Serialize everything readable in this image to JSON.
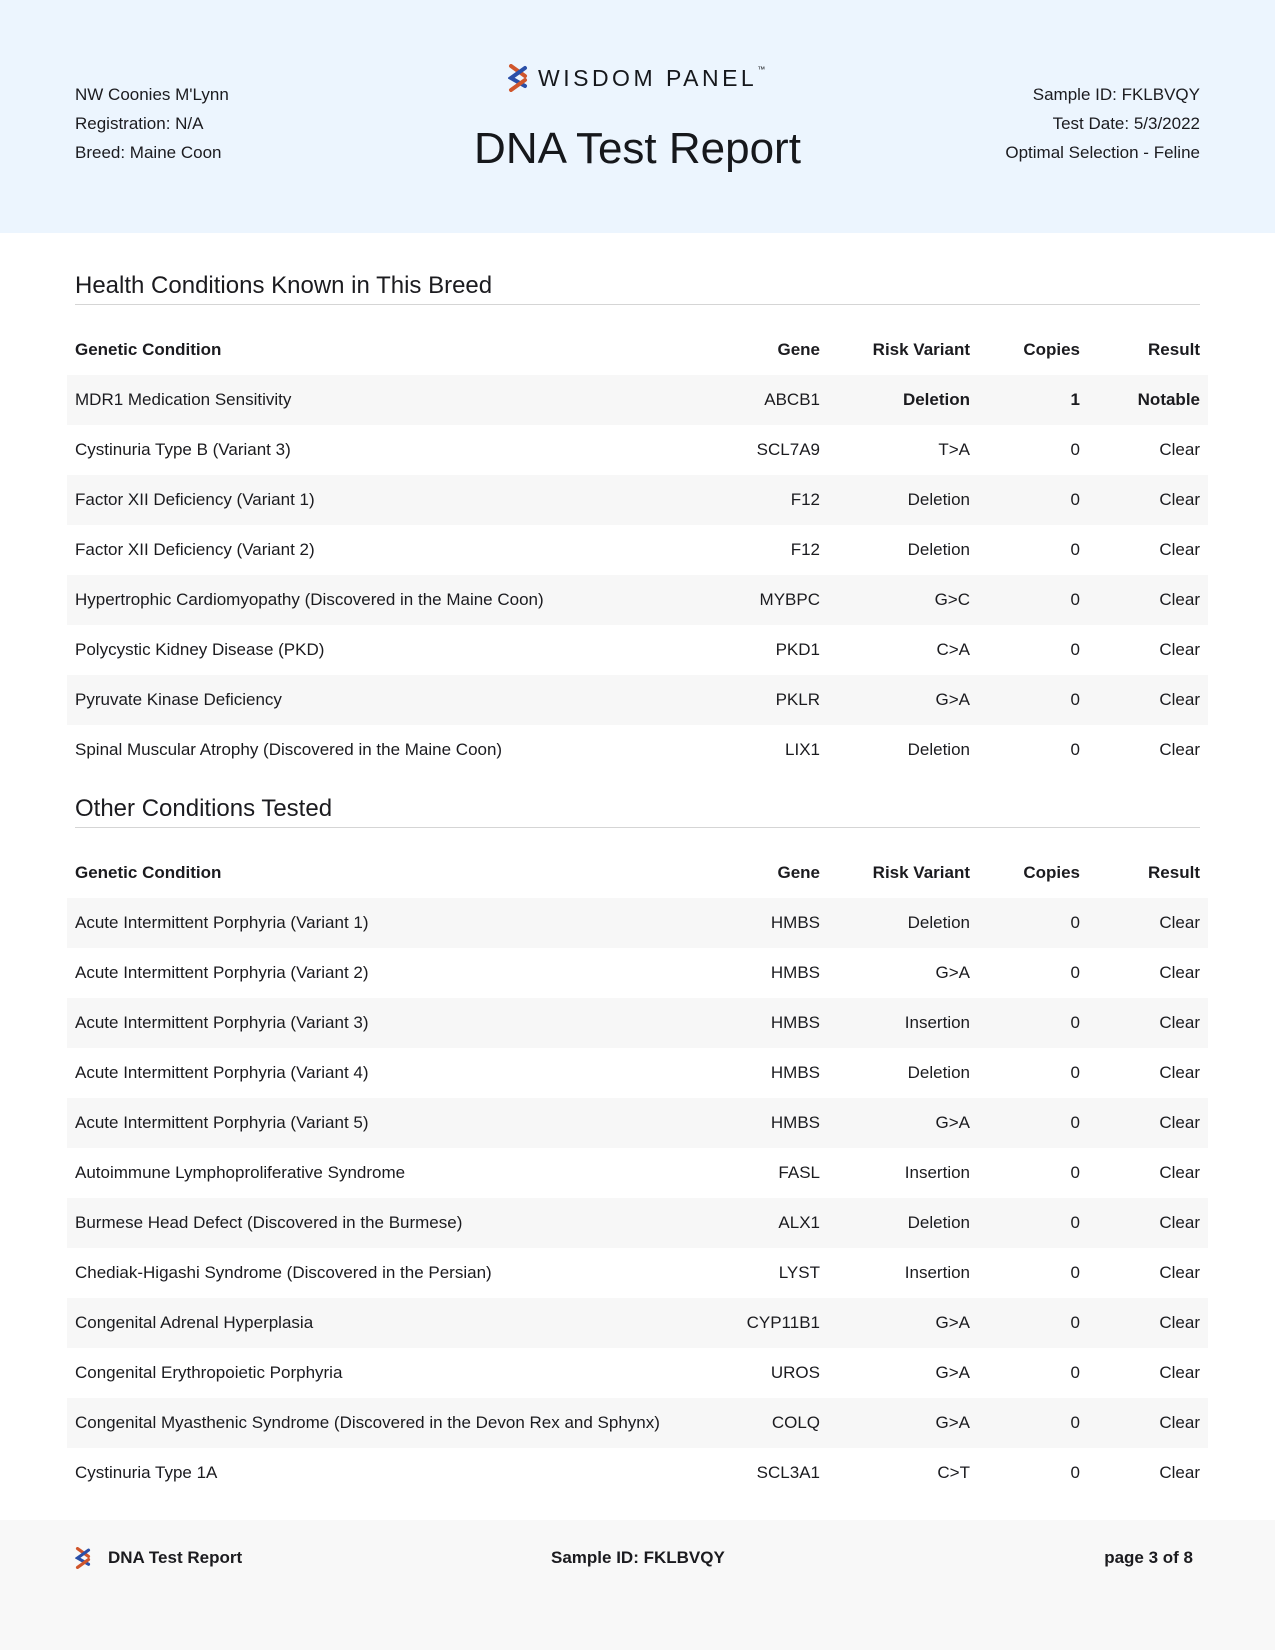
{
  "header": {
    "pet_name": "NW Coonies M'Lynn",
    "registration": "Registration: N/A",
    "breed": "Breed: Maine Coon",
    "brand": "WISDOM PANEL",
    "trademark": "™",
    "title": "DNA Test Report",
    "sample_id": "Sample ID: FKLBVQY",
    "test_date": "Test Date: 5/3/2022",
    "product": "Optimal Selection - Feline"
  },
  "colors": {
    "logo_orange": "#d0562c",
    "logo_blue": "#2a4fa8",
    "header_bg": "#ecf5fe"
  },
  "columns": [
    "Genetic Condition",
    "Gene",
    "Risk Variant",
    "Copies",
    "Result"
  ],
  "breed_section": {
    "title": "Health Conditions Known in This Breed",
    "rows": [
      [
        "MDR1 Medication Sensitivity",
        "ABCB1",
        "Deletion",
        "1",
        "Notable"
      ],
      [
        "Cystinuria Type B (Variant 3)",
        "SCL7A9",
        "T>A",
        "0",
        "Clear"
      ],
      [
        "Factor XII Deficiency (Variant 1)",
        "F12",
        "Deletion",
        "0",
        "Clear"
      ],
      [
        "Factor XII Deficiency (Variant 2)",
        "F12",
        "Deletion",
        "0",
        "Clear"
      ],
      [
        "Hypertrophic Cardiomyopathy (Discovered in the Maine Coon)",
        "MYBPC",
        "G>C",
        "0",
        "Clear"
      ],
      [
        "Polycystic Kidney Disease (PKD)",
        "PKD1",
        "C>A",
        "0",
        "Clear"
      ],
      [
        "Pyruvate Kinase Deficiency",
        "PKLR",
        "G>A",
        "0",
        "Clear"
      ],
      [
        "Spinal Muscular Atrophy (Discovered in the Maine Coon)",
        "LIX1",
        "Deletion",
        "0",
        "Clear"
      ]
    ]
  },
  "other_section": {
    "title": "Other Conditions Tested",
    "rows": [
      [
        "Acute Intermittent Porphyria (Variant 1)",
        "HMBS",
        "Deletion",
        "0",
        "Clear"
      ],
      [
        "Acute Intermittent Porphyria (Variant 2)",
        "HMBS",
        "G>A",
        "0",
        "Clear"
      ],
      [
        "Acute Intermittent Porphyria (Variant 3)",
        "HMBS",
        "Insertion",
        "0",
        "Clear"
      ],
      [
        "Acute Intermittent Porphyria (Variant 4)",
        "HMBS",
        "Deletion",
        "0",
        "Clear"
      ],
      [
        "Acute Intermittent Porphyria (Variant 5)",
        "HMBS",
        "G>A",
        "0",
        "Clear"
      ],
      [
        "Autoimmune Lymphoproliferative Syndrome",
        "FASL",
        "Insertion",
        "0",
        "Clear"
      ],
      [
        "Burmese Head Defect (Discovered in the Burmese)",
        "ALX1",
        "Deletion",
        "0",
        "Clear"
      ],
      [
        "Chediak-Higashi Syndrome (Discovered in the Persian)",
        "LYST",
        "Insertion",
        "0",
        "Clear"
      ],
      [
        "Congenital Adrenal Hyperplasia",
        "CYP11B1",
        "G>A",
        "0",
        "Clear"
      ],
      [
        "Congenital Erythropoietic Porphyria",
        "UROS",
        "G>A",
        "0",
        "Clear"
      ],
      [
        "Congenital Myasthenic Syndrome (Discovered in the Devon Rex and Sphynx)",
        "COLQ",
        "G>A",
        "0",
        "Clear"
      ],
      [
        "Cystinuria Type 1A",
        "SCL3A1",
        "C>T",
        "0",
        "Clear"
      ]
    ]
  },
  "footer": {
    "title": "DNA Test Report",
    "sample_id": "Sample ID: FKLBVQY",
    "page": "page 3 of 8"
  }
}
